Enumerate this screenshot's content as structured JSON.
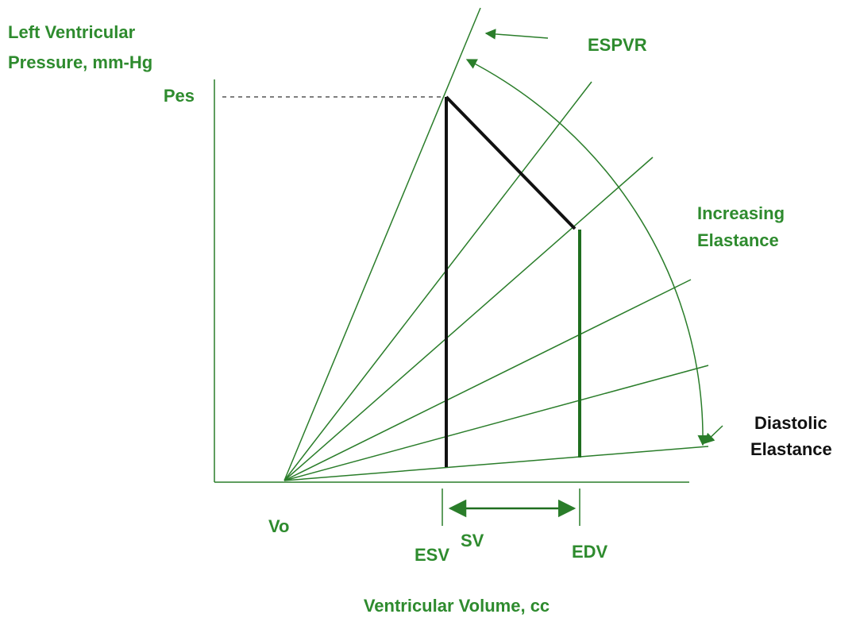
{
  "y_axis": {
    "label": [
      "Left Ventricular",
      "Pressure, mm-Hg"
    ]
  },
  "x_axis": {
    "label": "Ventricular Volume, cc"
  },
  "labels": {
    "pes": "Pes",
    "espvr": "ESPVR",
    "increasing_elastance": [
      "Increasing",
      "Elastance"
    ],
    "diastolic_elastance": [
      "Diastolic",
      "Elastance"
    ],
    "vo": "Vo",
    "esv": "ESV",
    "sv": "SV",
    "edv": "EDV"
  }
}
